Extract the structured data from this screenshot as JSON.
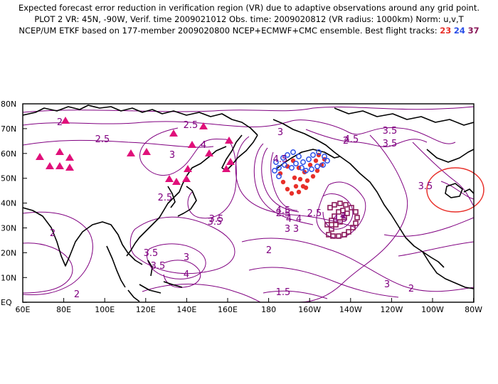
{
  "header": {
    "line1": "Expected forecast error reduction in verification region (VR) due to adaptive observations around any grid point.",
    "line2": "PLOT 2 VR: 45N, -90W, Verif. time 2009021012 Obs. time: 2009020812 (VR radius: 1000km) Norm: u,v,T",
    "line3_prefix": "NCEP/UM ETKF based on 177-member 2009020800 NCEP+ECMWF+CMC ensemble. Best flight tracks:",
    "tracks": [
      {
        "label": "23",
        "color": "#e8302a"
      },
      {
        "label": "24",
        "color": "#2a4fe8"
      },
      {
        "label": "37",
        "color": "#8a1a5a"
      }
    ]
  },
  "map": {
    "lat_ticks": [
      "80N",
      "70N",
      "60N",
      "50N",
      "40N",
      "30N",
      "20N",
      "10N",
      "EQ"
    ],
    "lon_ticks": [
      "60E",
      "80E",
      "100E",
      "120E",
      "140E",
      "160E",
      "180",
      "160W",
      "140W",
      "120W",
      "100W",
      "80W"
    ],
    "contour_labels": [
      "2",
      "2.5",
      "2.5",
      "2.5",
      "3",
      "3",
      "3",
      "3",
      "3.5",
      "3.5",
      "3.5",
      "3.5",
      "3.5",
      "4",
      "4",
      "4",
      "4",
      "4.5",
      "4.5",
      "4.5",
      "4.5",
      "2",
      "2",
      "2",
      "2.5",
      "2.5",
      "3",
      "3",
      "3.5",
      "3.5",
      "4",
      "1.5",
      "2",
      "2"
    ],
    "colors": {
      "contour": "#800080",
      "coast": "#000000",
      "triangle": "#e0107a",
      "verif_circle": "#e8302a"
    }
  }
}
